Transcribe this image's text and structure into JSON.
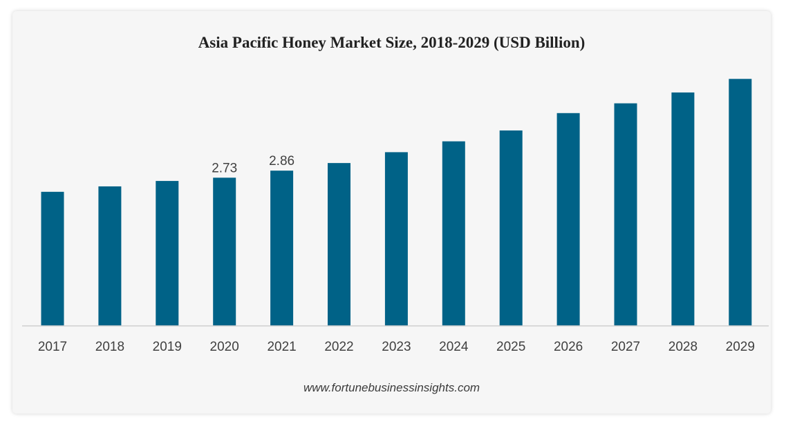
{
  "chart_data": {
    "type": "bar",
    "title": "Asia Pacific Honey Market Size, 2018-2029 (USD Billion)",
    "categories": [
      "2017",
      "2018",
      "2019",
      "2020",
      "2021",
      "2022",
      "2023",
      "2024",
      "2025",
      "2026",
      "2027",
      "2028",
      "2029"
    ],
    "values": [
      2.47,
      2.57,
      2.67,
      2.73,
      2.86,
      3.0,
      3.2,
      3.4,
      3.6,
      3.92,
      4.1,
      4.3,
      4.55
    ],
    "data_labels": [
      null,
      null,
      null,
      "2.73",
      "2.86",
      null,
      null,
      null,
      null,
      null,
      null,
      null,
      null
    ],
    "xlabel": "",
    "ylabel": "",
    "ylim": [
      0,
      5.8
    ],
    "grid": false,
    "bar_color": "#006287",
    "source": "www.fortunebusinessinsights.com"
  }
}
